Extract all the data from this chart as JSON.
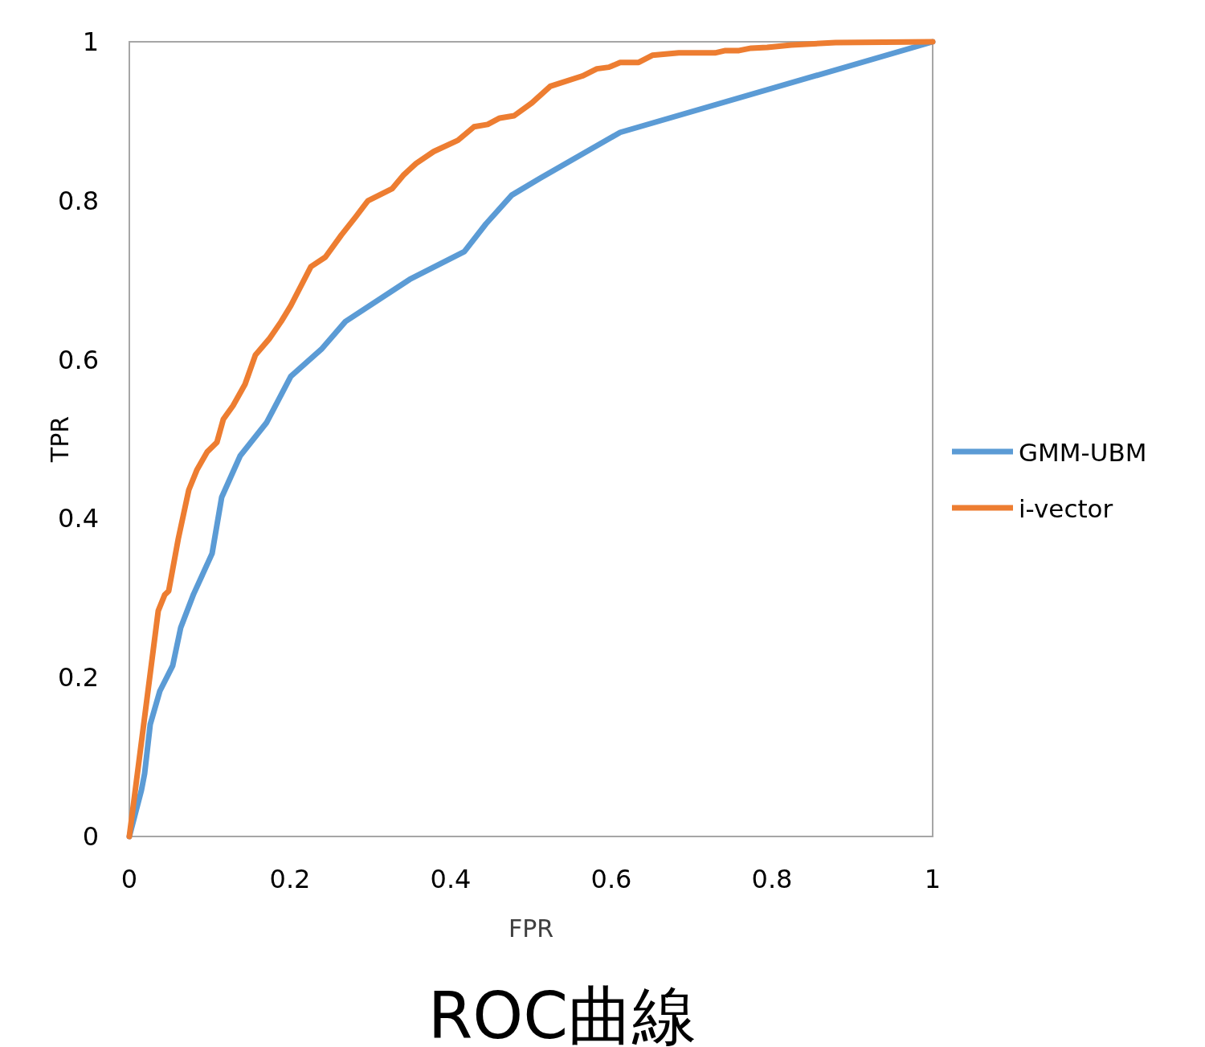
{
  "chart_data": {
    "type": "line",
    "title": "ROC曲線",
    "xlabel": "FPR",
    "ylabel": "TPR",
    "xlim": [
      0,
      1
    ],
    "ylim": [
      0,
      1
    ],
    "xticks": [
      0,
      0.2,
      0.4,
      0.6,
      0.8,
      1
    ],
    "yticks": [
      0,
      0.2,
      0.4,
      0.6,
      0.8,
      1
    ],
    "grid": false,
    "legend": "right",
    "marker": "none",
    "line_style": "solid",
    "series": [
      {
        "name": "GMM-UBM",
        "color": "#5b9bd5",
        "x": [
          0,
          0.015,
          0.019,
          0.026,
          0.038,
          0.054,
          0.064,
          0.08,
          0.103,
          0.115,
          0.138,
          0.171,
          0.201,
          0.239,
          0.269,
          0.349,
          0.417,
          0.444,
          0.476,
          0.511,
          0.611,
          1
        ],
        "values": [
          0,
          0.058,
          0.079,
          0.141,
          0.183,
          0.215,
          0.263,
          0.305,
          0.356,
          0.427,
          0.479,
          0.521,
          0.579,
          0.613,
          0.648,
          0.701,
          0.736,
          0.771,
          0.807,
          0.828,
          0.886,
          1
        ]
      },
      {
        "name": "i-vector",
        "color": "#ed7d31",
        "x": [
          0,
          0.036,
          0.044,
          0.049,
          0.061,
          0.074,
          0.084,
          0.097,
          0.109,
          0.117,
          0.129,
          0.144,
          0.157,
          0.174,
          0.189,
          0.201,
          0.226,
          0.244,
          0.264,
          0.282,
          0.297,
          0.327,
          0.341,
          0.357,
          0.379,
          0.409,
          0.429,
          0.446,
          0.461,
          0.479,
          0.501,
          0.524,
          0.564,
          0.582,
          0.597,
          0.611,
          0.634,
          0.651,
          0.684,
          0.729,
          0.742,
          0.759,
          0.774,
          0.794,
          0.824,
          0.879,
          1
        ],
        "values": [
          0,
          0.284,
          0.304,
          0.309,
          0.375,
          0.436,
          0.461,
          0.484,
          0.496,
          0.525,
          0.542,
          0.569,
          0.606,
          0.626,
          0.648,
          0.668,
          0.717,
          0.729,
          0.757,
          0.78,
          0.8,
          0.815,
          0.832,
          0.847,
          0.862,
          0.876,
          0.893,
          0.896,
          0.904,
          0.907,
          0.923,
          0.944,
          0.957,
          0.966,
          0.968,
          0.974,
          0.974,
          0.983,
          0.986,
          0.986,
          0.989,
          0.989,
          0.992,
          0.993,
          0.996,
          0.999,
          1
        ]
      }
    ]
  }
}
